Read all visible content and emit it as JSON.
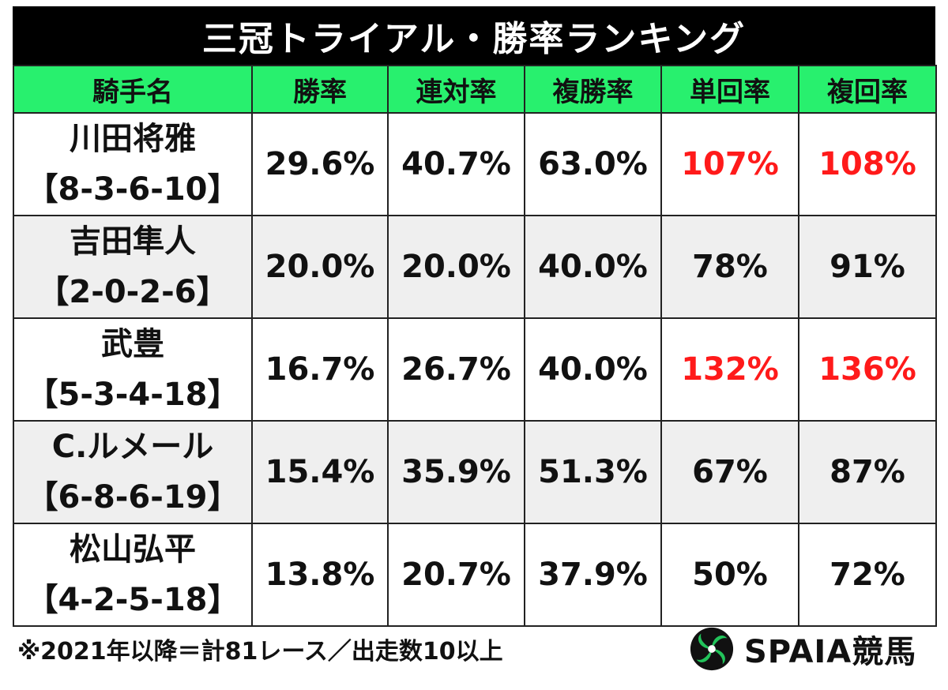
{
  "title": "三冠トライアル・勝率ランキング",
  "headers": [
    "騎手名",
    "勝率",
    "連対率",
    "複勝率",
    "単回率",
    "複回率"
  ],
  "rows": [
    {
      "name": "川田将雅",
      "record": "【8-3-6-10】",
      "win": "29.6%",
      "quinella": "40.7%",
      "place": "63.0%",
      "win_return": "107%",
      "place_return": "108%"
    },
    {
      "name": "吉田隼人",
      "record": "【2-0-2-6】",
      "win": "20.0%",
      "quinella": "20.0%",
      "place": "40.0%",
      "win_return": "78%",
      "place_return": "91%"
    },
    {
      "name": "武豊",
      "record": "【5-3-4-18】",
      "win": "16.7%",
      "quinella": "26.7%",
      "place": "40.0%",
      "win_return": "132%",
      "place_return": "136%"
    },
    {
      "name": "C.ルメール",
      "record": "【6-8-6-19】",
      "win": "15.4%",
      "quinella": "35.9%",
      "place": "51.3%",
      "win_return": "67%",
      "place_return": "87%"
    },
    {
      "name": "松山弘平",
      "record": "【4-2-5-18】",
      "win": "13.8%",
      "quinella": "20.7%",
      "place": "37.9%",
      "win_return": "50%",
      "place_return": "72%"
    }
  ],
  "footnote": "※2021年以降＝計81レース／出走数10以上",
  "logo": {
    "text": "SPAIA競馬",
    "icon": "spaia-swirl-icon"
  },
  "colors": {
    "header_bg": "#28f06e",
    "title_bg": "#000000",
    "highlight": "#ff1a1a",
    "shaded_row": "#efefef",
    "logo_green": "#22c35a"
  }
}
